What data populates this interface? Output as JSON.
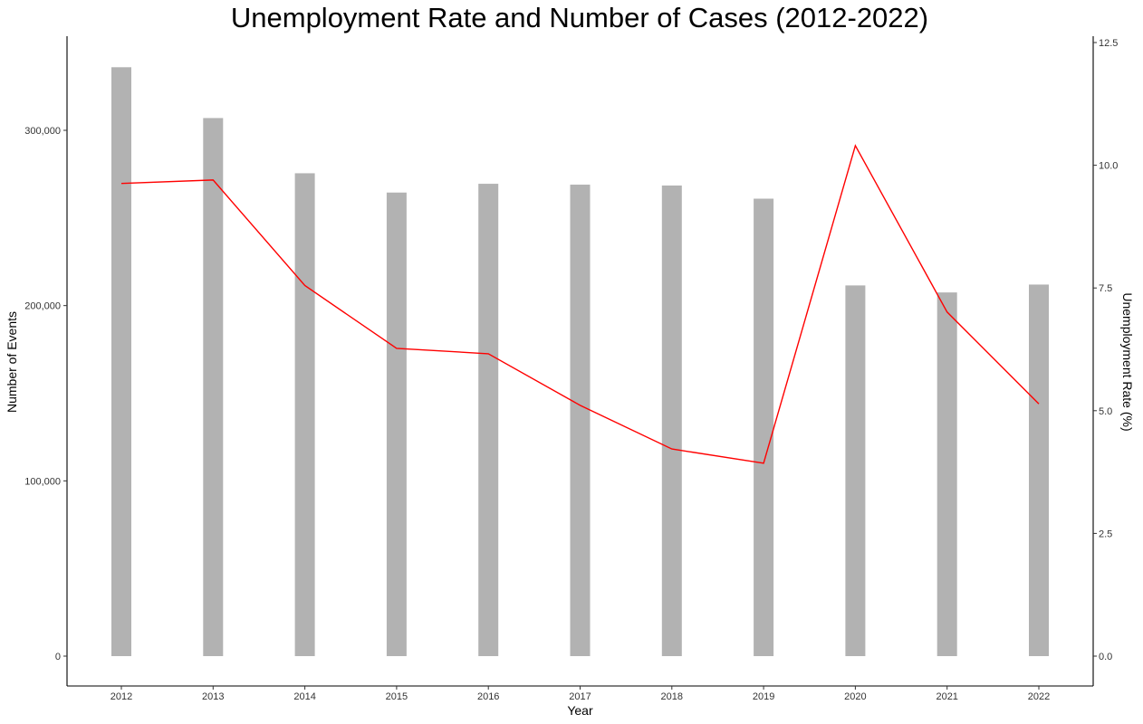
{
  "chart_data": {
    "type": "bar",
    "title": "Unemployment Rate and Number of Cases (2012-2022)",
    "xlabel": "Year",
    "ylabel": "Number of Events",
    "y2label": "Unemployment Rate (%)",
    "categories": [
      "2012",
      "2013",
      "2014",
      "2015",
      "2016",
      "2017",
      "2018",
      "2019",
      "2020",
      "2021",
      "2022"
    ],
    "series": [
      {
        "type": "bar",
        "axis": "left",
        "color": "#b2b2b2",
        "values": [
          336000,
          307000,
          275500,
          264500,
          269500,
          269000,
          268500,
          261000,
          211500,
          207500,
          212000
        ]
      },
      {
        "type": "line",
        "axis": "right",
        "color": "#ff0000",
        "values": [
          9.63,
          9.7,
          7.55,
          6.27,
          6.16,
          5.11,
          4.22,
          3.93,
          10.4,
          7.01,
          5.14
        ]
      }
    ],
    "ylim": [
      0,
      350000
    ],
    "y_ticks": [
      0,
      100000,
      200000,
      300000
    ],
    "y_tick_labels": [
      "0",
      "100,000",
      "200,000",
      "300,000"
    ],
    "y2lim": [
      0,
      12.5
    ],
    "y2_ticks": [
      0,
      2.5,
      5,
      7.5,
      10,
      12.5
    ],
    "y2_tick_labels": [
      "0.0",
      "2.5",
      "5.0",
      "7.5",
      "10.0",
      "12.5"
    ],
    "grid": false,
    "legend": "none"
  }
}
